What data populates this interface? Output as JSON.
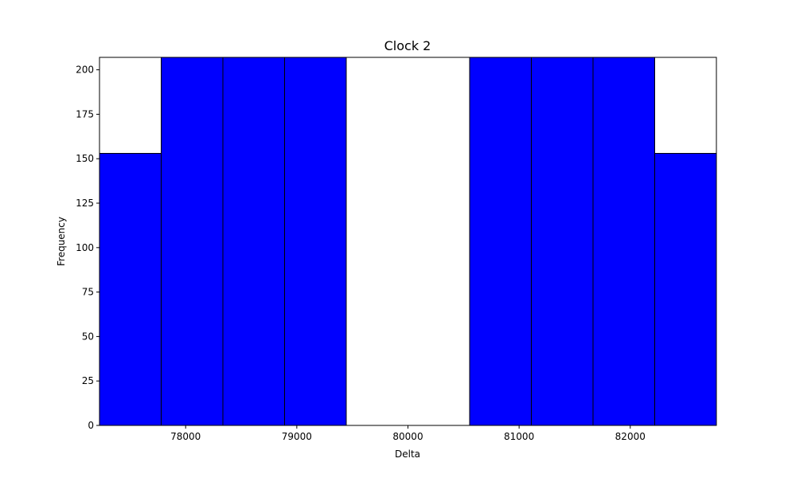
{
  "chart_data": {
    "type": "bar",
    "subtype": "histogram",
    "title": "Clock 2",
    "xlabel": "Delta",
    "ylabel": "Frequency",
    "xlim": [
      77225,
      82775
    ],
    "ylim": [
      0,
      207
    ],
    "xticks": [
      78000,
      79000,
      80000,
      81000,
      82000
    ],
    "yticks": [
      0,
      25,
      50,
      75,
      100,
      125,
      150,
      175,
      200
    ],
    "bins": [
      {
        "start": 77225,
        "end": 77780,
        "value": 153
      },
      {
        "start": 77780,
        "end": 78335,
        "value": 207
      },
      {
        "start": 78335,
        "end": 78890,
        "value": 207
      },
      {
        "start": 78890,
        "end": 79445,
        "value": 207
      },
      {
        "start": 79445,
        "end": 80000,
        "value": 0
      },
      {
        "start": 80000,
        "end": 80555,
        "value": 0
      },
      {
        "start": 80555,
        "end": 81110,
        "value": 207
      },
      {
        "start": 81110,
        "end": 81665,
        "value": 207
      },
      {
        "start": 81665,
        "end": 82220,
        "value": 207
      },
      {
        "start": 82220,
        "end": 82775,
        "value": 153
      }
    ],
    "bar_color": "#0000ff",
    "edge_color": "#000000",
    "grid": false,
    "legend": "none"
  }
}
